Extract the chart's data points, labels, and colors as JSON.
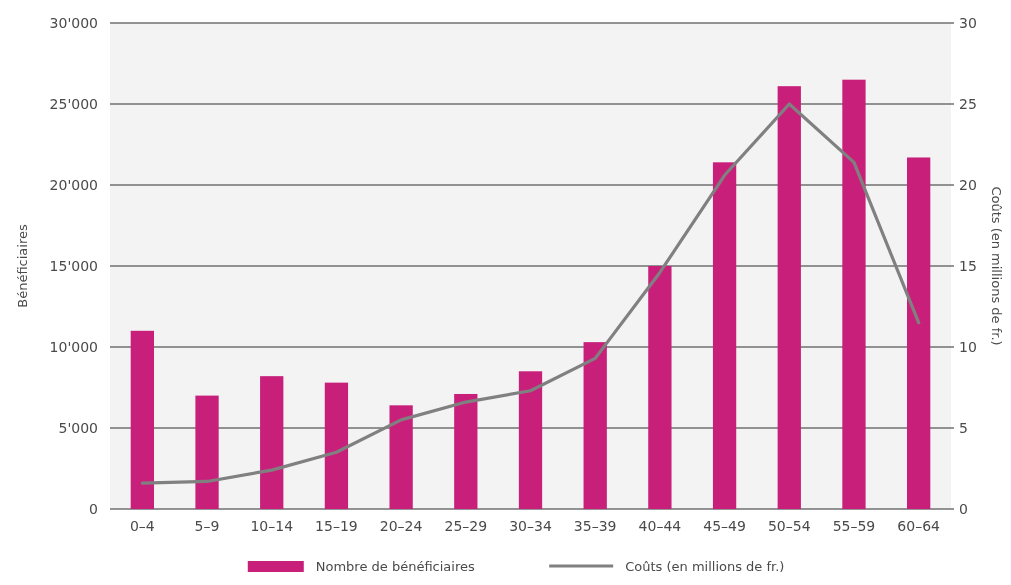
{
  "chart_data": {
    "type": "bar",
    "categories": [
      "0–4",
      "5–9",
      "10–14",
      "15–19",
      "20–24",
      "25–29",
      "30–34",
      "35–39",
      "40–44",
      "45–49",
      "50–54",
      "55–59",
      "60–64"
    ],
    "ylabel": "Bénéficiaires",
    "y2label": "Coûts (en millions de fr.)",
    "ylim": [
      0,
      30000
    ],
    "yticks": [
      {
        "value": 0,
        "label": "0"
      },
      {
        "value": 5000,
        "label": "5'000"
      },
      {
        "value": 10000,
        "label": "10'000"
      },
      {
        "value": 15000,
        "label": "15'000"
      },
      {
        "value": 20000,
        "label": "20'000"
      },
      {
        "value": 25000,
        "label": "25'000"
      },
      {
        "value": 30000,
        "label": "30'000"
      }
    ],
    "y2lim": [
      0,
      30
    ],
    "y2ticks": [
      0,
      5,
      10,
      15,
      20,
      25,
      30
    ],
    "grid": "y",
    "legend": "bottom",
    "series": [
      {
        "name": "Nombre de bénéficiaires",
        "color": "#c8207a",
        "values": [
          11000,
          7000,
          8200,
          7800,
          6400,
          7100,
          8500,
          10300,
          15000,
          21400,
          26100,
          26500,
          21700
        ]
      },
      {
        "name": "Coûts (en millions de fr.)",
        "type": "line",
        "axis": "y2",
        "color": "#808080",
        "values": [
          1.6,
          1.7,
          2.4,
          3.5,
          5.5,
          6.6,
          7.3,
          9.3,
          14.6,
          20.6,
          25.0,
          21.4,
          11.5
        ]
      }
    ]
  }
}
